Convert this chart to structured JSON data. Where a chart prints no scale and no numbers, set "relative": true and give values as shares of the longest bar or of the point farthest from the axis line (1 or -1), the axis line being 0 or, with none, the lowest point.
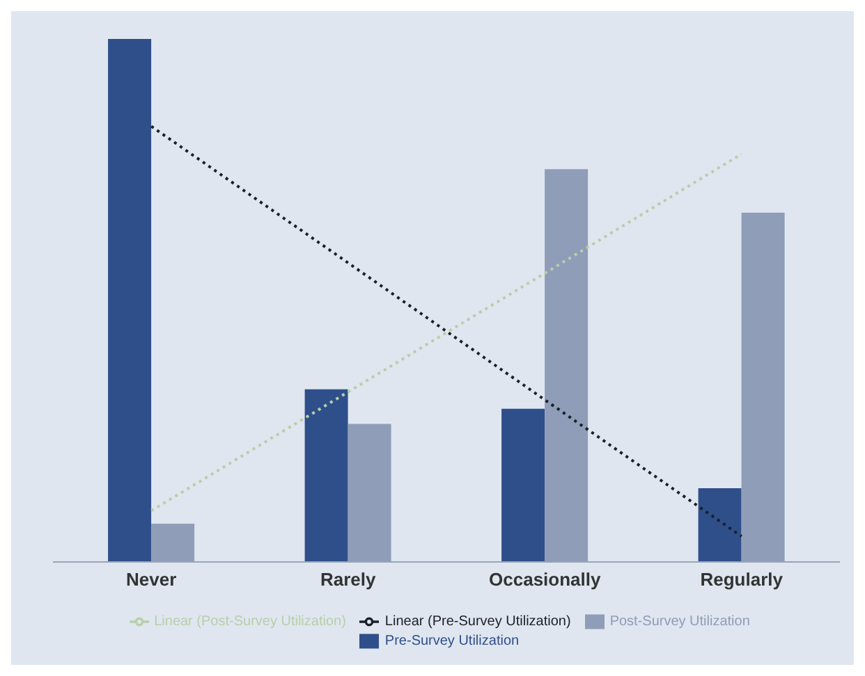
{
  "chart_data": {
    "type": "bar",
    "relative": true,
    "categories": [
      "Never",
      "Rarely",
      "Occasionally",
      "Regularly"
    ],
    "series": [
      {
        "name": "Pre-Survey Utilization",
        "color": "#2e4f8a",
        "values": [
          1,
          0.33,
          0.293,
          0.141
        ]
      },
      {
        "name": "Post-Survey Utilization",
        "color": "#8f9db8",
        "values": [
          0.073,
          0.264,
          0.751,
          0.668
        ]
      },
      {
        "name": "Linear (Pre-Survey Utilization)",
        "type": "line",
        "line_style": "dotted",
        "color": "#1c1f26",
        "values": [
          0.833,
          0.572,
          0.31,
          0.049
        ]
      },
      {
        "name": "Linear (Post-Survey Utilization)",
        "type": "line",
        "line_style": "dotted",
        "color": "#b7cfa8",
        "values": [
          0.098,
          0.325,
          0.552,
          0.78
        ]
      }
    ],
    "legend": "bottom",
    "grid": false
  }
}
